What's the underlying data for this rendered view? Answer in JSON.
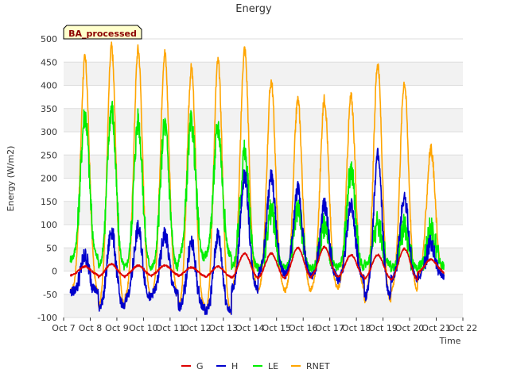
{
  "chart_data": {
    "type": "line",
    "title": "Energy",
    "xlabel": "Time",
    "ylabel": "Energy (W/m2)",
    "badge": "BA_processed",
    "xlim": [
      7,
      22
    ],
    "ylim": [
      -100,
      500
    ],
    "x_ticks": [
      "Oct 7",
      "Oct 8",
      "Oct 9",
      "Oct 10",
      "Oct 11",
      "Oct 12",
      "Oct 13",
      "Oct 14",
      "Oct 15",
      "Oct 16",
      "Oct 17",
      "Oct 18",
      "Oct 19",
      "Oct 20",
      "Oct 21",
      "Oct 22"
    ],
    "y_ticks": [
      -100,
      -50,
      0,
      50,
      100,
      150,
      200,
      250,
      300,
      350,
      400,
      450,
      500
    ],
    "grid": true,
    "legend_position": "bottom",
    "x_start": 7.25,
    "x_end": 21.3,
    "daily_peaks": {
      "x": [
        7.8,
        8.8,
        9.8,
        10.8,
        11.8,
        12.8,
        13.8,
        14.8,
        15.8,
        16.8,
        17.8,
        18.8,
        19.8,
        20.8
      ],
      "RNET": [
        458,
        482,
        478,
        470,
        436,
        452,
        478,
        409,
        368,
        370,
        375,
        447,
        407,
        262
      ],
      "LE": [
        338,
        352,
        323,
        315,
        318,
        310,
        255,
        130,
        135,
        100,
        215,
        100,
        95,
        90
      ],
      "H": [
        32,
        87,
        90,
        78,
        60,
        76,
        205,
        202,
        175,
        140,
        145,
        245,
        160,
        60
      ],
      "G": [
        10,
        15,
        12,
        12,
        8,
        10,
        38,
        38,
        50,
        52,
        35,
        35,
        48,
        25
      ]
    },
    "night_levels": {
      "RNET": [
        -45,
        -80,
        -60,
        -55,
        -80,
        -95,
        -45,
        -45,
        -48,
        -40,
        -40,
        -70,
        -45,
        -10
      ],
      "LE": [
        25,
        5,
        5,
        5,
        25,
        30,
        5,
        5,
        5,
        5,
        5,
        15,
        5,
        10
      ],
      "H": [
        -45,
        -80,
        -60,
        -50,
        -80,
        -90,
        -40,
        -5,
        -10,
        -15,
        -20,
        -60,
        -20,
        -10
      ],
      "G": [
        -10,
        -15,
        -12,
        -10,
        -12,
        -15,
        -20,
        -20,
        -20,
        -18,
        -18,
        -22,
        -25,
        -5
      ]
    },
    "series": [
      {
        "name": "G",
        "color": "#dd0000"
      },
      {
        "name": "H",
        "color": "#0000cc"
      },
      {
        "name": "LE",
        "color": "#00ee00"
      },
      {
        "name": "RNET",
        "color": "#ffa500"
      }
    ]
  }
}
